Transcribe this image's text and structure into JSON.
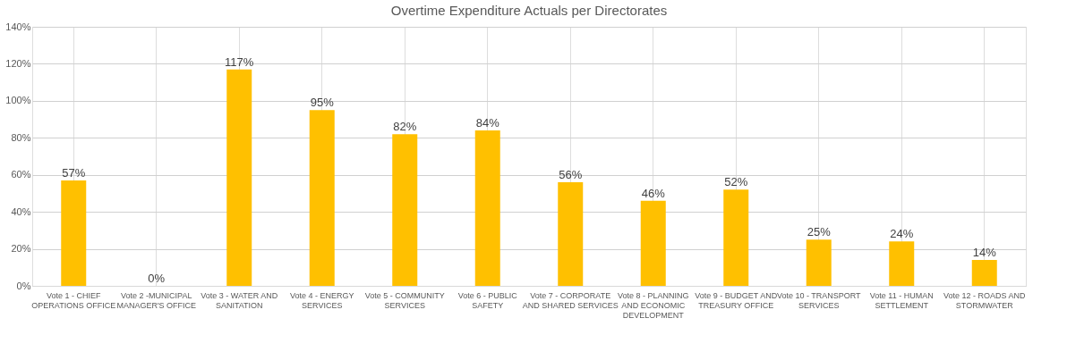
{
  "chart_data": {
    "type": "bar",
    "title": "Overtime Expenditure Actuals per Directorates",
    "categories": [
      "Vote 1 - CHIEF OPERATIONS OFFICE",
      "Vote 2 -MUNICIPAL MANAGER'S OFFICE",
      "Vote 3 - WATER AND SANITATION",
      "Vote 4 -  ENERGY SERVICES",
      "Vote 5 - COMMUNITY SERVICES",
      "Vote 6 - PUBLIC SAFETY",
      "Vote 7 - CORPORATE AND SHARED SERVICES",
      "Vote 8 - PLANNING AND ECONOMIC DEVELOPMENT",
      "Vote 9 - BUDGET AND TREASURY OFFICE",
      "Vote 10 - TRANSPORT SERVICES",
      "Vote 11 - HUMAN SETTLEMENT",
      "Vote 12 - ROADS AND STORMWATER"
    ],
    "values": [
      57,
      0,
      117,
      95,
      82,
      84,
      56,
      46,
      52,
      25,
      24,
      14
    ],
    "value_labels": [
      "57%",
      "0%",
      "117%",
      "95%",
      "82%",
      "84%",
      "56%",
      "46%",
      "52%",
      "25%",
      "24%",
      "14%"
    ],
    "color": "#ffc000",
    "ylim": [
      0,
      140
    ],
    "yticks": [
      {
        "value": 0,
        "label": "0%"
      },
      {
        "value": 20,
        "label": "20%"
      },
      {
        "value": 40,
        "label": "40%"
      },
      {
        "value": 60,
        "label": "60%"
      },
      {
        "value": 80,
        "label": "80%"
      },
      {
        "value": 100,
        "label": "100%"
      },
      {
        "value": 120,
        "label": "120%"
      },
      {
        "value": 140,
        "label": "140%"
      }
    ],
    "grid": true
  }
}
